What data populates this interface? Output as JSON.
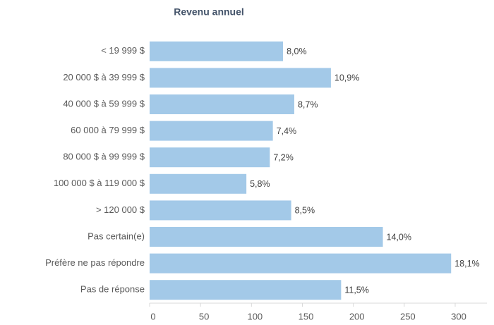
{
  "chart_data": {
    "type": "bar",
    "orientation": "horizontal",
    "title": "Revenu annuel",
    "categories": [
      "< 19 999 $",
      "20 000 $ à 39 999 $",
      "40 000 $ à 59 999 $",
      "60 000 à 79 999 $",
      "80 000 $ à 99 999 $",
      "100 000 $ à 119 000 $",
      "> 120 000 $",
      "Pas certain(e)",
      "Préfère ne pas répondre",
      "Pas de réponse"
    ],
    "values": [
      131,
      178,
      142,
      121,
      118,
      95,
      139,
      229,
      296,
      188
    ],
    "value_labels": [
      "8,0%",
      "10,9%",
      "8,7%",
      "7,4%",
      "7,2%",
      "5,8%",
      "8,5%",
      "14,0%",
      "18,1%",
      "11,5%"
    ],
    "color": "#a3c9e8",
    "xlim": [
      0,
      300
    ],
    "xticks": [
      0,
      50,
      100,
      150,
      200,
      250,
      300
    ]
  }
}
